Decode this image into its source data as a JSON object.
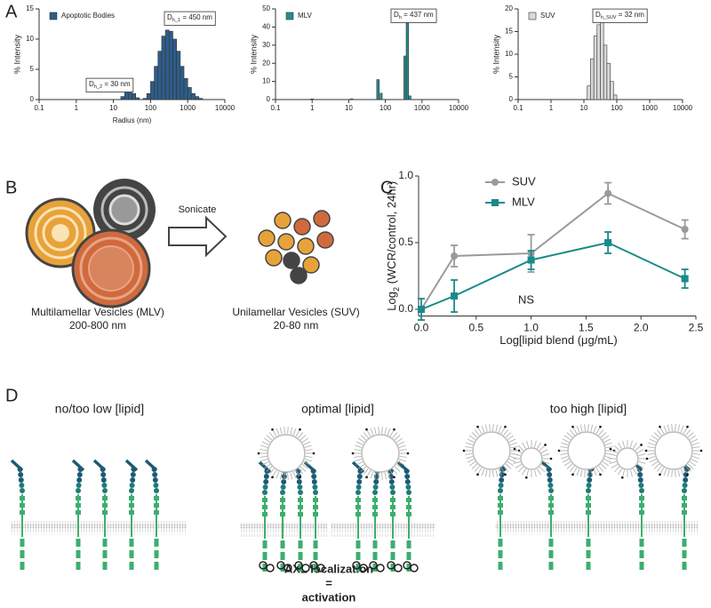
{
  "panel_labels": [
    "A",
    "B",
    "C",
    "D"
  ],
  "chart_data": [
    {
      "type": "histogram",
      "ylabel": "% Intensity",
      "xlabel": "Radius (nm)",
      "xscale": "log",
      "xlim": [
        0.1,
        10000
      ],
      "xticks": [
        0.1,
        1,
        10,
        100,
        1000,
        10000
      ],
      "ylim": [
        0,
        15
      ],
      "yticks": [
        0,
        5,
        10,
        15
      ],
      "bins": [
        15.8,
        20,
        25.1,
        31.6,
        39.8,
        50.1,
        63.1,
        79.4,
        100,
        125.9,
        158.5,
        199.5,
        251.2,
        316.2,
        398.1,
        501.2,
        631,
        794.3,
        1000,
        1258.9,
        1584.9,
        1995.3,
        2511.9
      ],
      "series": [
        {
          "name": "Apoptotic Bodies",
          "color": "#2f5d8a",
          "values": [
            0.5,
            1.2,
            1.5,
            1,
            0.3,
            0,
            0.2,
            1,
            3,
            5.5,
            8,
            10.5,
            11.5,
            11.3,
            10,
            8,
            5.5,
            3.5,
            2,
            1,
            0.5,
            0.2
          ]
        }
      ],
      "annotations": [
        {
          "text": "D",
          "sub": "h_1",
          "rest": " = 450 nm"
        },
        {
          "text": "D",
          "sub": "h_2",
          "rest": " = 30 nm"
        }
      ]
    },
    {
      "type": "histogram",
      "ylabel": "% Intensity",
      "xscale": "log",
      "xlim": [
        0.1,
        10000
      ],
      "xticks": [
        0.1,
        1,
        10,
        100,
        1000,
        10000
      ],
      "ylim": [
        0,
        50
      ],
      "yticks": [
        0,
        10,
        20,
        30,
        40,
        50
      ],
      "bins": [
        0.9,
        1.1,
        11,
        13,
        58,
        68,
        72,
        82,
        320,
        370,
        430,
        500
      ],
      "series": [
        {
          "name": "MLV",
          "color": "#2a8c8c",
          "values": [
            0.3,
            0,
            0.4,
            0,
            11,
            0,
            3.5,
            0,
            24,
            45,
            2
          ]
        }
      ],
      "annotations": [
        {
          "text": "D",
          "sub": "h",
          "rest": " = 437 nm"
        }
      ]
    },
    {
      "type": "histogram",
      "ylabel": "% Intensity",
      "xscale": "log",
      "xlim": [
        0.1,
        10000
      ],
      "xticks": [
        0.1,
        1,
        10,
        100,
        1000,
        10000
      ],
      "ylim": [
        0,
        20
      ],
      "yticks": [
        0,
        5,
        10,
        15,
        20
      ],
      "bins": [
        12.6,
        15.8,
        20,
        25.1,
        31.6,
        39.8,
        50.1,
        63.1,
        79.4,
        100
      ],
      "series": [
        {
          "name": "SUV",
          "color": "#d9d9d9",
          "values": [
            3,
            9,
            14,
            16.5,
            17,
            12,
            8,
            4,
            1
          ]
        }
      ],
      "annotations": [
        {
          "text": "D",
          "sub": "h_SUV",
          "rest": " = 32 nm"
        }
      ]
    },
    {
      "type": "line",
      "ylabel": {
        "text": "Log",
        "sub": "2",
        "rest": " (WCR/control, 24hr)"
      },
      "xlabel": "Log[lipid blend (μg/mL)",
      "xlim": [
        0,
        2.5
      ],
      "ylim": [
        -0.05,
        1.0
      ],
      "xticks": [
        {
          "value": 0,
          "label": "0.0"
        },
        {
          "value": 0.5,
          "label": "0.5"
        },
        {
          "value": 1,
          "label": "1.0"
        },
        {
          "value": 1.5,
          "label": "1.5"
        },
        {
          "value": 2,
          "label": "2.0"
        },
        {
          "value": 2.5,
          "label": "2.5"
        }
      ],
      "yticks": [
        {
          "value": 0,
          "label": "0.0"
        },
        {
          "value": 0.5,
          "label": "0.5"
        },
        {
          "value": 1,
          "label": "1.0"
        }
      ],
      "x": [
        0,
        0.3,
        1,
        1.7,
        2.4
      ],
      "series": [
        {
          "name": "SUV",
          "color": "#9a9a9a",
          "marker": "circle",
          "values": [
            0,
            0.4,
            0.42,
            0.87,
            0.6
          ],
          "errors": [
            0.02,
            0.08,
            0.14,
            0.08,
            0.07
          ]
        },
        {
          "name": "MLV",
          "color": "#1a8a8a",
          "marker": "square",
          "values": [
            0,
            0.1,
            0.37,
            0.5,
            0.23
          ],
          "errors": [
            0.08,
            0.12,
            0.07,
            0.08,
            0.07
          ]
        }
      ],
      "annotations": [
        "NS"
      ]
    }
  ],
  "diagram_b": {
    "arrow_label": "Sonicate",
    "left": {
      "name": "Multilamellar Vesicles (MLV)",
      "size": "200-800 nm"
    },
    "right": {
      "name": "Unilamellar Vesicles (SUV)",
      "size": "20-80 nm"
    }
  },
  "diagram_d": {
    "panels": [
      "no/too low [lipid]",
      "optimal [lipid]",
      "too high [lipid]"
    ],
    "caption": [
      "AXL localization",
      "=",
      "activation"
    ]
  }
}
